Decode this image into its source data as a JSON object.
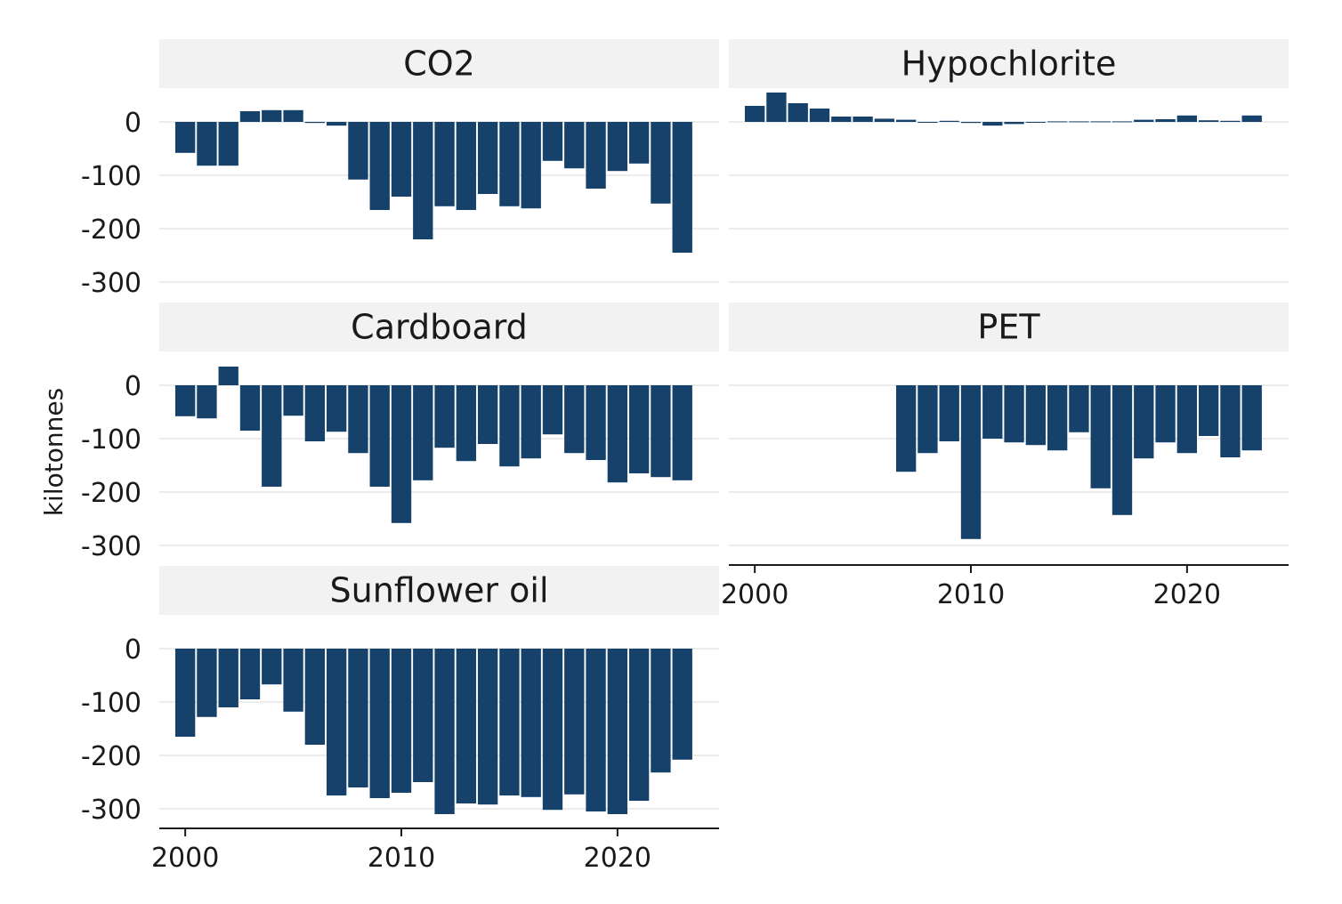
{
  "chart_data": {
    "type": "bar",
    "layout": "facet-grid",
    "ylabel": "kilotonnes",
    "xlabel": "",
    "bar_color": "#15416b",
    "strip_color": "#f2f2f2",
    "grid_color": "#d9d9d9",
    "ylim": [
      -320,
      60
    ],
    "yticks": [
      0,
      -100,
      -200,
      -300
    ],
    "ytick_labels": [
      "0",
      "-100",
      "-200",
      "-300"
    ],
    "xlim": [
      1998.8,
      2024.7
    ],
    "xticks": [
      2000,
      2010,
      2020
    ],
    "xtick_labels": [
      "2000",
      "2010",
      "2020"
    ],
    "panels": [
      {
        "name": "CO2",
        "x": [
          2000,
          2001,
          2002,
          2003,
          2004,
          2005,
          2006,
          2007,
          2008,
          2009,
          2010,
          2011,
          2012,
          2013,
          2014,
          2015,
          2016,
          2017,
          2018,
          2019,
          2020,
          2021,
          2022,
          2023
        ],
        "values": [
          -58,
          -82,
          -82,
          20,
          22,
          22,
          -2,
          -7,
          -108,
          -165,
          -140,
          -220,
          -158,
          -165,
          -135,
          -158,
          -162,
          -73,
          -87,
          -125,
          -92,
          -78,
          -153,
          -245
        ]
      },
      {
        "name": "Hypochlorite",
        "x": [
          2000,
          2001,
          2002,
          2003,
          2004,
          2005,
          2006,
          2007,
          2008,
          2009,
          2010,
          2011,
          2012,
          2013,
          2014,
          2015,
          2016,
          2017,
          2018,
          2019,
          2020,
          2021,
          2022,
          2023
        ],
        "values": [
          30,
          55,
          35,
          25,
          10,
          10,
          6,
          4,
          -1,
          2,
          -2,
          -7,
          -4,
          -1,
          1,
          1,
          1,
          1,
          4,
          5,
          12,
          3,
          2,
          12
        ]
      },
      {
        "name": "Cardboard",
        "x": [
          2000,
          2001,
          2002,
          2003,
          2004,
          2005,
          2006,
          2007,
          2008,
          2009,
          2010,
          2011,
          2012,
          2013,
          2014,
          2015,
          2016,
          2017,
          2018,
          2019,
          2020,
          2021,
          2022,
          2023
        ],
        "values": [
          -58,
          -62,
          35,
          -85,
          -190,
          -57,
          -105,
          -87,
          -127,
          -190,
          -258,
          -178,
          -117,
          -142,
          -110,
          -152,
          -137,
          -92,
          -127,
          -140,
          -182,
          -165,
          -172,
          -178
        ]
      },
      {
        "name": "PET",
        "x": [
          2007,
          2008,
          2009,
          2010,
          2011,
          2012,
          2013,
          2014,
          2015,
          2016,
          2017,
          2018,
          2019,
          2020,
          2021,
          2022,
          2023
        ],
        "values": [
          -162,
          -127,
          -105,
          -288,
          -100,
          -107,
          -112,
          -122,
          -88,
          -193,
          -243,
          -137,
          -107,
          -127,
          -95,
          -135,
          -122
        ]
      },
      {
        "name": "Sunflower oil",
        "x": [
          2000,
          2001,
          2002,
          2003,
          2004,
          2005,
          2006,
          2007,
          2008,
          2009,
          2010,
          2011,
          2012,
          2013,
          2014,
          2015,
          2016,
          2017,
          2018,
          2019,
          2020,
          2021,
          2022,
          2023
        ],
        "values": [
          -165,
          -128,
          -110,
          -95,
          -67,
          -118,
          -180,
          -275,
          -260,
          -280,
          -270,
          -250,
          -310,
          -290,
          -292,
          -275,
          -278,
          -302,
          -273,
          -305,
          -310,
          -285,
          -232,
          -208
        ]
      }
    ]
  }
}
